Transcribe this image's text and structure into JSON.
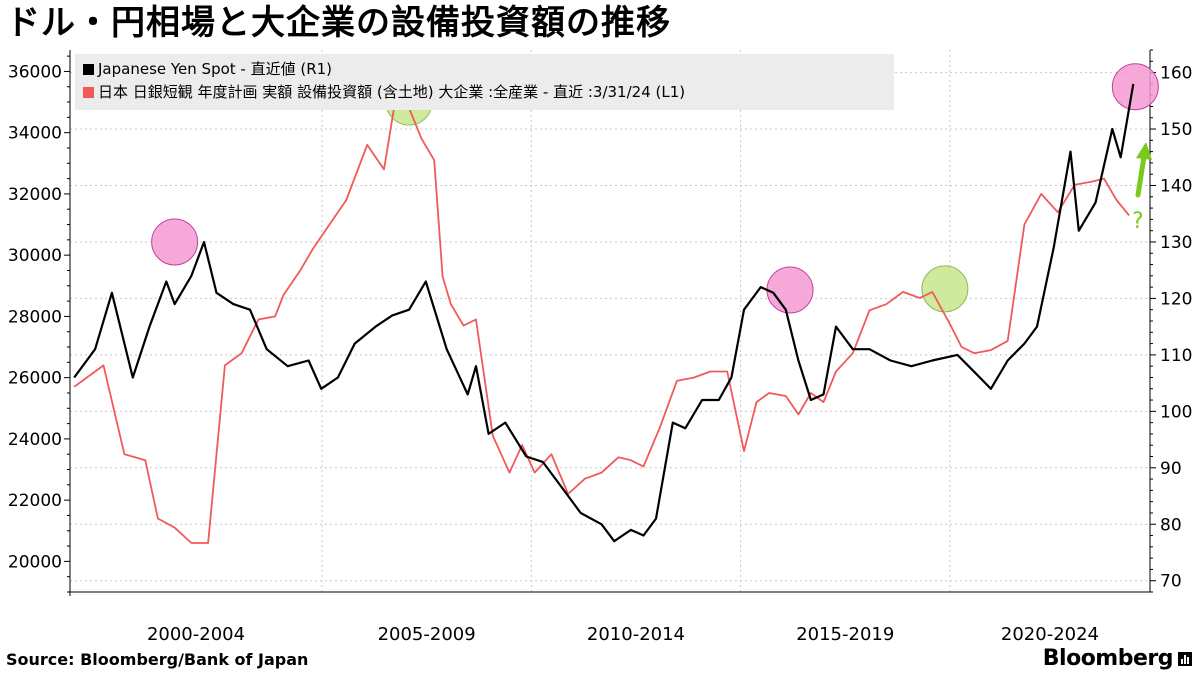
{
  "title": "ドル・円相場と大企業の設備投資額の推移",
  "legend": {
    "yen": "Japanese Yen Spot - 直近値 (R1)",
    "capex": "日本 日銀短観 年度計画 実額 設備投資額 (含土地) 大企業 :全産業 - 直近 :3/31/24 (L1)"
  },
  "colors": {
    "yen": "#000000",
    "capex": "#f05a5a",
    "grid": "#c8c8c8",
    "highlight_pink": "#f59ad2",
    "highlight_green": "#c8e68c",
    "arrow": "#7dc81e"
  },
  "annotation_question": "?",
  "source": "Source:  Bloomberg/Bank of Japan",
  "brand": "Bloomberg",
  "chart_data": {
    "type": "line",
    "x_tick_labels": [
      "2000-2004",
      "2005-2009",
      "2010-2014",
      "2015-2019",
      "2020-2024"
    ],
    "x_range": [
      1998.9,
      2024.7
    ],
    "left_axis": {
      "ylim": [
        19000,
        36700
      ],
      "ticks": [
        20000,
        22000,
        24000,
        26000,
        28000,
        30000,
        32000,
        34000,
        36000
      ]
    },
    "right_axis": {
      "ylim": [
        68,
        164
      ],
      "ticks": [
        70,
        80,
        90,
        100,
        110,
        120,
        130,
        140,
        150,
        160
      ]
    },
    "grid": true,
    "series": [
      {
        "name": "Japanese Yen Spot - 直近値 (R1)",
        "axis": "right",
        "x": [
          1999.0,
          1999.5,
          1999.9,
          2000.4,
          2000.8,
          2001.2,
          2001.4,
          2001.8,
          2002.1,
          2002.4,
          2002.8,
          2003.2,
          2003.6,
          2004.1,
          2004.6,
          2004.9,
          2005.3,
          2005.7,
          2006.2,
          2006.6,
          2007.0,
          2007.4,
          2007.9,
          2008.4,
          2008.6,
          2008.9,
          2009.3,
          2009.8,
          2010.2,
          2010.7,
          2011.1,
          2011.6,
          2011.9,
          2012.3,
          2012.6,
          2012.9,
          2013.3,
          2013.6,
          2014.0,
          2014.4,
          2014.7,
          2015.0,
          2015.4,
          2015.7,
          2016.0,
          2016.3,
          2016.6,
          2016.9,
          2017.2,
          2017.6,
          2018.0,
          2018.5,
          2019.0,
          2019.5,
          2020.1,
          2020.5,
          2020.9,
          2021.3,
          2021.7,
          2022.0,
          2022.4,
          2022.8,
          2023.0,
          2023.4,
          2023.8,
          2024.0,
          2024.3
        ],
        "values": [
          106,
          111,
          121,
          106,
          115,
          123,
          119,
          124,
          130,
          121,
          119,
          118,
          111,
          108,
          109,
          104,
          106,
          112,
          115,
          117,
          118,
          123,
          111,
          103,
          108,
          96,
          98,
          92,
          91,
          86,
          82,
          80,
          77,
          79,
          78,
          81,
          98,
          97,
          102,
          102,
          106,
          118,
          122,
          121,
          118,
          109,
          102,
          103,
          115,
          111,
          111,
          109,
          108,
          109,
          110,
          107,
          104,
          109,
          112,
          115,
          129,
          146,
          132,
          137,
          150,
          145,
          158
        ]
      },
      {
        "name": "日本 日銀短観 年度計画 実額 設備投資額 (含土地) 大企業 :全産業 - 直近 :3/31/24 (L1)",
        "axis": "left",
        "x": [
          1999.0,
          1999.7,
          2000.2,
          2000.7,
          2001.0,
          2001.4,
          2001.8,
          2002.2,
          2002.6,
          2003.0,
          2003.4,
          2003.8,
          2004.0,
          2004.4,
          2004.7,
          2005.1,
          2005.5,
          2006.0,
          2006.4,
          2006.7,
          2007.0,
          2007.3,
          2007.6,
          2007.8,
          2008.0,
          2008.3,
          2008.6,
          2009.0,
          2009.4,
          2009.7,
          2010.0,
          2010.4,
          2010.8,
          2011.2,
          2011.6,
          2012.0,
          2012.3,
          2012.6,
          2013.0,
          2013.4,
          2013.8,
          2014.2,
          2014.6,
          2015.0,
          2015.3,
          2015.6,
          2016.0,
          2016.3,
          2016.6,
          2016.9,
          2017.2,
          2017.6,
          2018.0,
          2018.4,
          2018.8,
          2019.2,
          2019.5,
          2019.9,
          2020.2,
          2020.5,
          2020.9,
          2021.3,
          2021.7,
          2022.1,
          2022.5,
          2022.9,
          2023.3,
          2023.6,
          2023.9,
          2024.2
        ],
        "values": [
          25700,
          26400,
          23500,
          23300,
          21400,
          21100,
          20600,
          20600,
          26400,
          26800,
          27900,
          28000,
          28700,
          29500,
          30200,
          31000,
          31800,
          33600,
          32800,
          35300,
          34800,
          33800,
          33100,
          29300,
          28400,
          27700,
          27900,
          24100,
          22900,
          23800,
          22900,
          23500,
          22200,
          22700,
          22900,
          23400,
          23300,
          23100,
          24400,
          25900,
          26000,
          26200,
          26200,
          23600,
          25200,
          25500,
          25400,
          24800,
          25500,
          25200,
          26200,
          26800,
          28200,
          28400,
          28800,
          28600,
          28800,
          27800,
          27000,
          26800,
          26900,
          27200,
          31000,
          32000,
          31400,
          32300,
          32400,
          32500,
          31800,
          31300
        ]
      }
    ]
  }
}
